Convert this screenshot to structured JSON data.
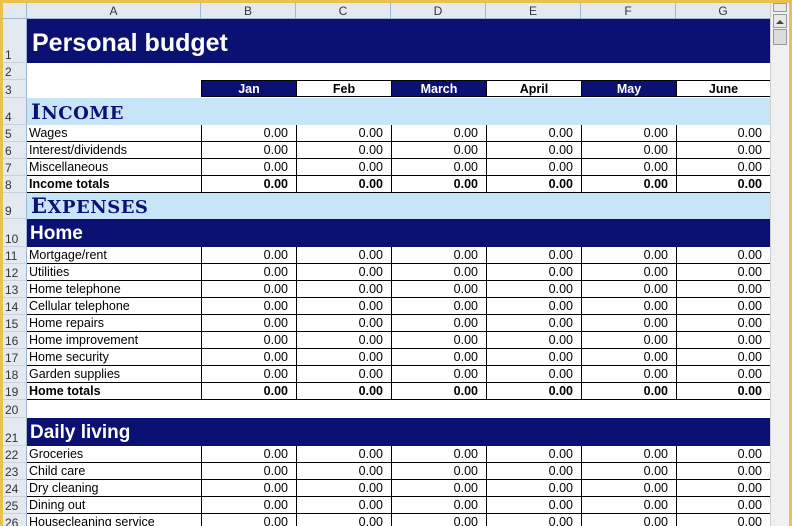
{
  "sheet": {
    "columns": [
      "A",
      "B",
      "C",
      "D",
      "E",
      "F",
      "G"
    ],
    "title": "Personal budget",
    "months": [
      "Jan",
      "Feb",
      "March",
      "April",
      "May",
      "June"
    ],
    "income": {
      "heading_initial": "I",
      "heading_rest": "NCOME",
      "items": [
        {
          "label": "Wages",
          "values": [
            "0.00",
            "0.00",
            "0.00",
            "0.00",
            "0.00",
            "0.00"
          ]
        },
        {
          "label": "Interest/dividends",
          "values": [
            "0.00",
            "0.00",
            "0.00",
            "0.00",
            "0.00",
            "0.00"
          ]
        },
        {
          "label": "Miscellaneous",
          "values": [
            "0.00",
            "0.00",
            "0.00",
            "0.00",
            "0.00",
            "0.00"
          ]
        }
      ],
      "total": {
        "label": "Income totals",
        "values": [
          "0.00",
          "0.00",
          "0.00",
          "0.00",
          "0.00",
          "0.00"
        ]
      }
    },
    "expenses": {
      "heading_initial": "E",
      "heading_rest": "XPENSES"
    },
    "home": {
      "heading": "Home",
      "items": [
        {
          "label": "Mortgage/rent",
          "values": [
            "0.00",
            "0.00",
            "0.00",
            "0.00",
            "0.00",
            "0.00"
          ]
        },
        {
          "label": "Utilities",
          "values": [
            "0.00",
            "0.00",
            "0.00",
            "0.00",
            "0.00",
            "0.00"
          ]
        },
        {
          "label": "Home telephone",
          "values": [
            "0.00",
            "0.00",
            "0.00",
            "0.00",
            "0.00",
            "0.00"
          ]
        },
        {
          "label": "Cellular telephone",
          "values": [
            "0.00",
            "0.00",
            "0.00",
            "0.00",
            "0.00",
            "0.00"
          ]
        },
        {
          "label": "Home repairs",
          "values": [
            "0.00",
            "0.00",
            "0.00",
            "0.00",
            "0.00",
            "0.00"
          ]
        },
        {
          "label": "Home improvement",
          "values": [
            "0.00",
            "0.00",
            "0.00",
            "0.00",
            "0.00",
            "0.00"
          ]
        },
        {
          "label": "Home security",
          "values": [
            "0.00",
            "0.00",
            "0.00",
            "0.00",
            "0.00",
            "0.00"
          ]
        },
        {
          "label": "Garden supplies",
          "values": [
            "0.00",
            "0.00",
            "0.00",
            "0.00",
            "0.00",
            "0.00"
          ]
        }
      ],
      "total": {
        "label": "Home totals",
        "values": [
          "0.00",
          "0.00",
          "0.00",
          "0.00",
          "0.00",
          "0.00"
        ]
      }
    },
    "daily": {
      "heading": "Daily living",
      "items": [
        {
          "label": "Groceries",
          "values": [
            "0.00",
            "0.00",
            "0.00",
            "0.00",
            "0.00",
            "0.00"
          ]
        },
        {
          "label": "Child care",
          "values": [
            "0.00",
            "0.00",
            "0.00",
            "0.00",
            "0.00",
            "0.00"
          ]
        },
        {
          "label": "Dry cleaning",
          "values": [
            "0.00",
            "0.00",
            "0.00",
            "0.00",
            "0.00",
            "0.00"
          ]
        },
        {
          "label": "Dining out",
          "values": [
            "0.00",
            "0.00",
            "0.00",
            "0.00",
            "0.00",
            "0.00"
          ]
        },
        {
          "label": "Housecleaning service",
          "values": [
            "0.00",
            "0.00",
            "0.00",
            "0.00",
            "0.00",
            "0.00"
          ]
        }
      ]
    },
    "row_numbers": [
      "1",
      "2",
      "3",
      "4",
      "5",
      "6",
      "7",
      "8",
      "9",
      "10",
      "11",
      "12",
      "13",
      "14",
      "15",
      "16",
      "17",
      "18",
      "19",
      "20",
      "21",
      "22",
      "23",
      "24",
      "25",
      "26"
    ]
  },
  "colors": {
    "navy": "#0a1172",
    "section_blue": "#c8e4f7",
    "header_grey": "#e4e9f1",
    "frame_gold": "#e8c24a"
  },
  "icons": {
    "scroll_up": "triangle-up",
    "scroll_split": "split-box"
  }
}
